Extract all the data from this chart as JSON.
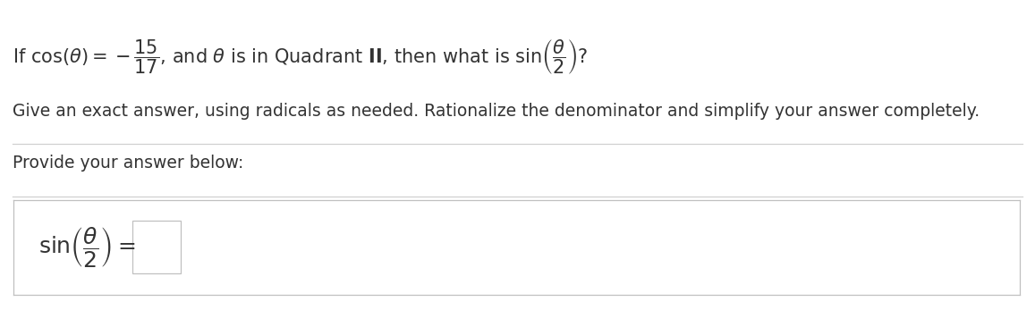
{
  "bg_color": "#ffffff",
  "line2_text": "Give an exact answer, using radicals as needed. Rationalize the denominator and simplify your answer completely.",
  "line3_text": "Provide your answer below:",
  "separator_color": "#d0d0d0",
  "text_color": "#333333",
  "box_border_color": "#c0c0c0",
  "font_size_main": 15,
  "font_size_secondary": 13.5,
  "fig_width": 11.57,
  "fig_height": 3.47,
  "dpi": 100
}
